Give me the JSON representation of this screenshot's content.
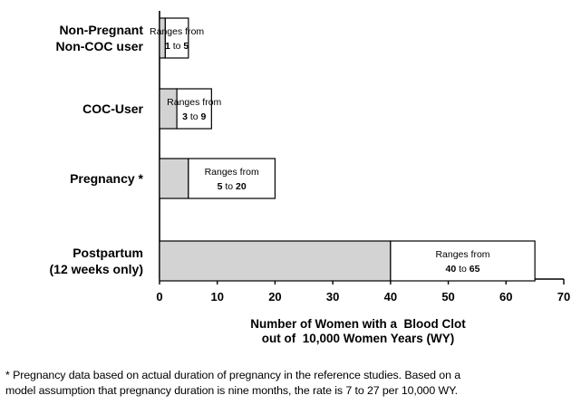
{
  "chart_data": {
    "type": "bar",
    "orientation": "horizontal",
    "stacked_range": true,
    "categories": [
      {
        "lines": [
          "Non-Pregnant",
          "Non-COC user"
        ],
        "low": 1,
        "high": 5,
        "range_prefix": "Ranges from",
        "low_text": "1",
        "to_text": "to",
        "high_text": "5"
      },
      {
        "lines": [
          "COC-User"
        ],
        "low": 3,
        "high": 9,
        "range_prefix": "Ranges from",
        "low_text": "3",
        "to_text": "to",
        "high_text": "9"
      },
      {
        "lines": [
          "Pregnancy *"
        ],
        "low": 5,
        "high": 20,
        "range_prefix": "Ranges from",
        "low_text": "5",
        "to_text": "to",
        "high_text": "20"
      },
      {
        "lines": [
          "Postpartum",
          "(12 weeks only)"
        ],
        "low": 40,
        "high": 65,
        "range_prefix": "Ranges from",
        "low_text": "40",
        "to_text": "to",
        "high_text": "65"
      }
    ],
    "xlim": [
      0,
      70
    ],
    "xticks": [
      "0",
      "10",
      "20",
      "30",
      "40",
      "50",
      "60",
      "70"
    ],
    "xlabel_lines": [
      "Number of Women with a  Blood Clot",
      "out of  10,000 Women Years (WY)"
    ],
    "grid": false,
    "colors": {
      "low_fill": "#d3d3d3",
      "range_fill": "#ffffff",
      "stroke": "#000000"
    }
  },
  "footnote": {
    "line1": "* Pregnancy data based on actual duration of pregnancy in the reference studies. Based on a",
    "line2": "model assumption that pregnancy duration is nine months, the rate is 7 to 27 per 10,000 WY."
  }
}
